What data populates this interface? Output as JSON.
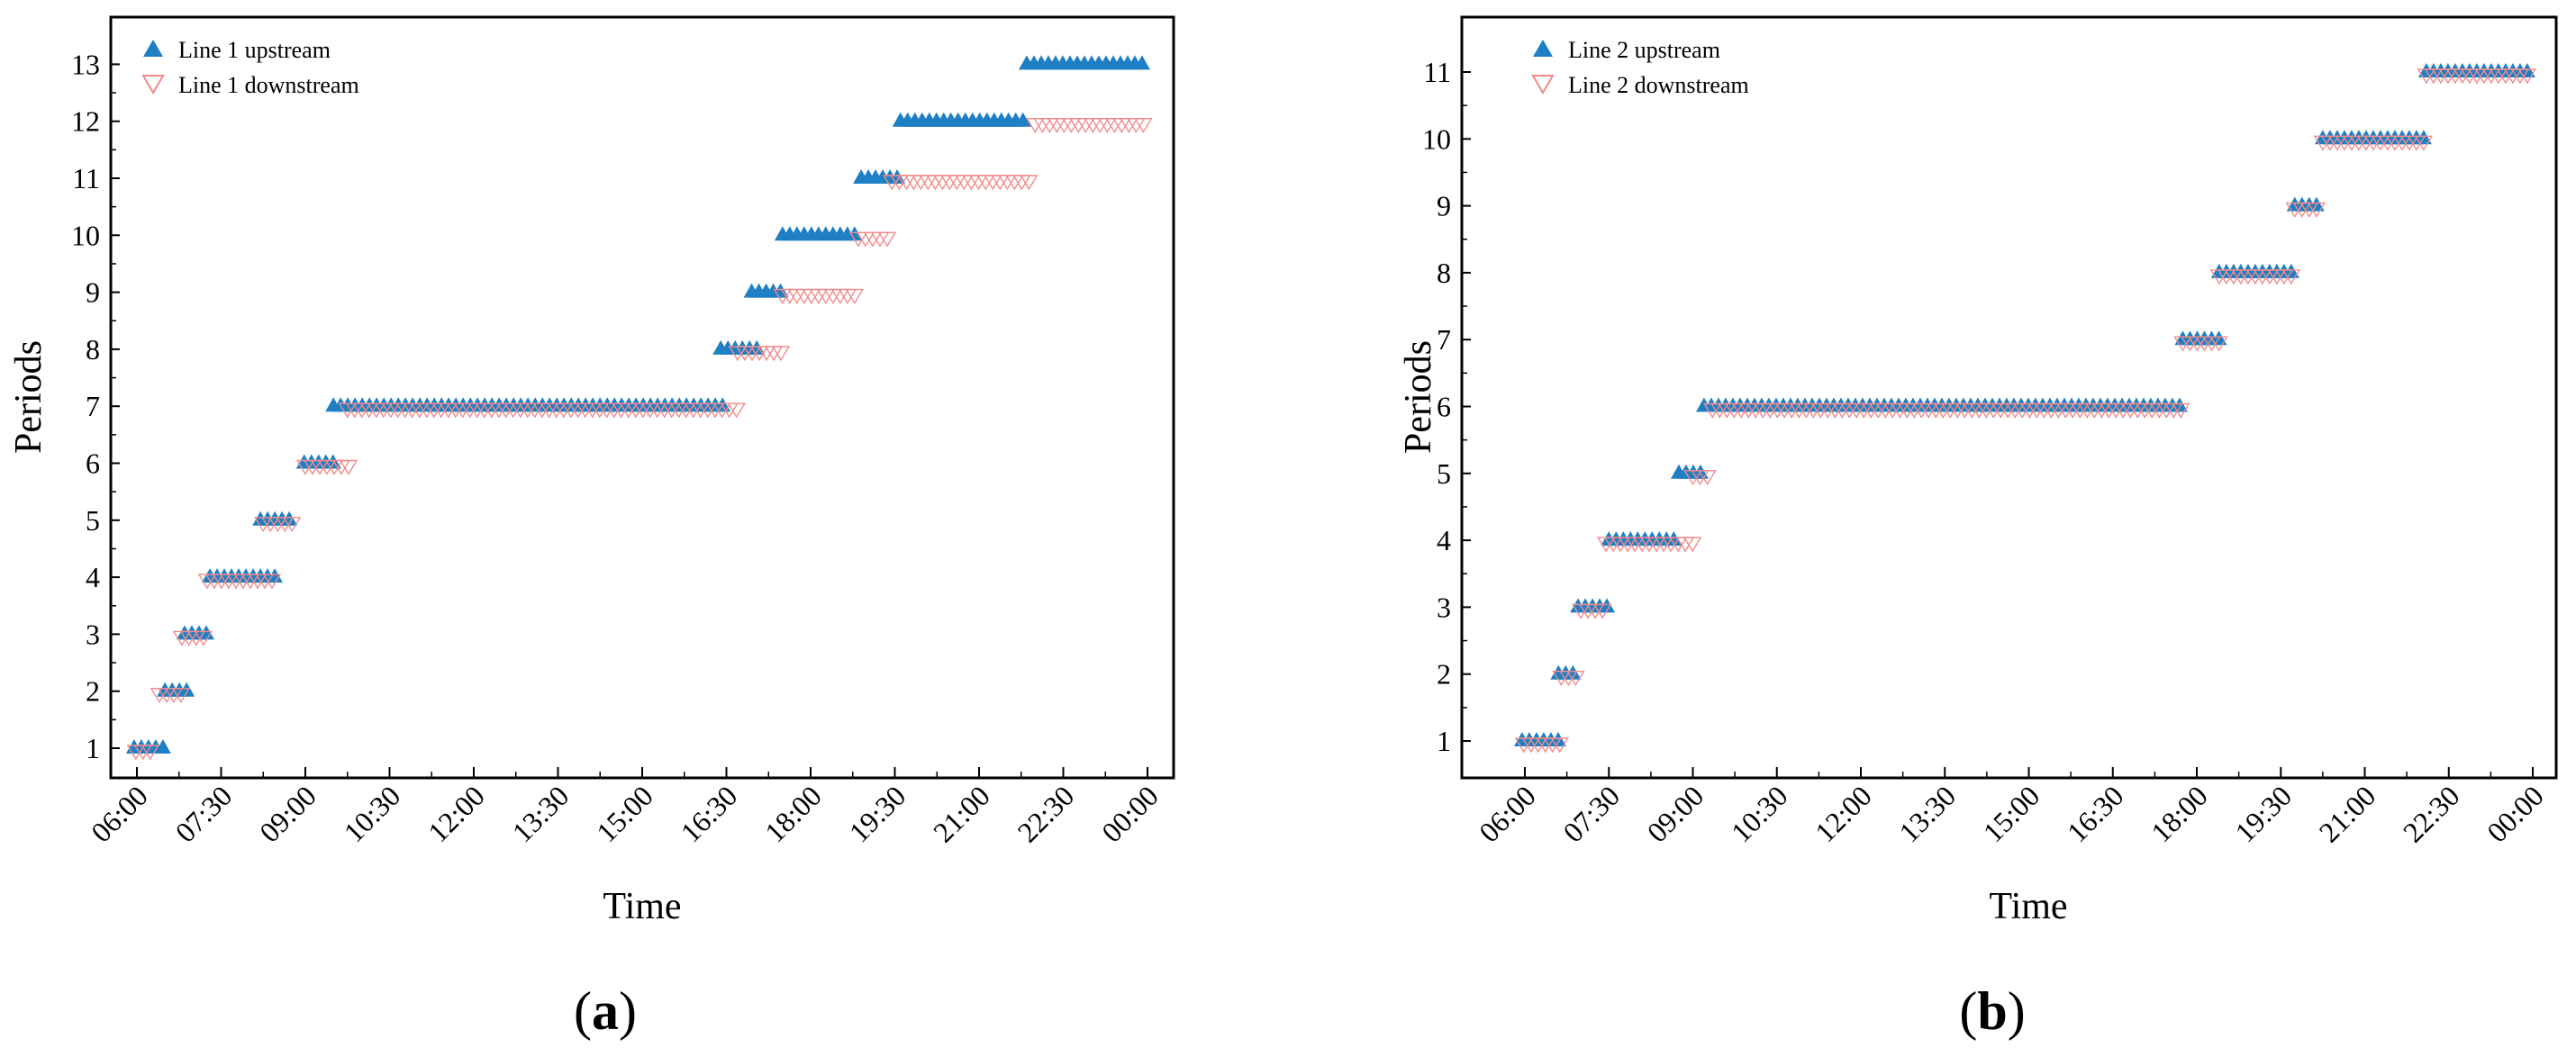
{
  "chart_data": [
    {
      "type": "scatter",
      "panel_label": "a",
      "xlabel": "Time",
      "ylabel": "Periods",
      "x_ticks": [
        "06:00",
        "07:30",
        "09:00",
        "10:30",
        "12:00",
        "13:30",
        "15:00",
        "16:30",
        "18:00",
        "19:30",
        "21:00",
        "22:30",
        "00:00"
      ],
      "xlim_hours": [
        6,
        24
      ],
      "ylim": [
        0.5,
        13.75
      ],
      "y_ticks": [
        1,
        2,
        3,
        4,
        5,
        6,
        7,
        8,
        9,
        10,
        11,
        12,
        13
      ],
      "legend_position": "top-left",
      "series": [
        {
          "name": "Line 1 upstream",
          "marker": "triangle-up",
          "color": "#1f7fc4",
          "segments": [
            {
              "period": 1,
              "start": 5.95,
              "end": 6.5
            },
            {
              "period": 2,
              "start": 6.5,
              "end": 6.95
            },
            {
              "period": 3,
              "start": 6.85,
              "end": 7.35
            },
            {
              "period": 4,
              "start": 7.3,
              "end": 8.55
            },
            {
              "period": 5,
              "start": 8.2,
              "end": 8.8
            },
            {
              "period": 6,
              "start": 8.98,
              "end": 9.5
            },
            {
              "period": 7,
              "start": 9.5,
              "end": 16.45
            },
            {
              "period": 8,
              "start": 16.4,
              "end": 17.1
            },
            {
              "period": 9,
              "start": 16.95,
              "end": 17.5
            },
            {
              "period": 10,
              "start": 17.5,
              "end": 18.9
            },
            {
              "period": 11,
              "start": 18.9,
              "end": 19.6
            },
            {
              "period": 12,
              "start": 19.6,
              "end": 21.85
            },
            {
              "period": 13,
              "start": 21.85,
              "end": 24.0
            }
          ]
        },
        {
          "name": "Line 1 downstream",
          "marker": "triangle-down",
          "color": "#f28b8b",
          "segments": [
            {
              "period": 1,
              "start": 5.98,
              "end": 6.35
            },
            {
              "period": 2,
              "start": 6.4,
              "end": 6.85
            },
            {
              "period": 3,
              "start": 6.8,
              "end": 7.25
            },
            {
              "period": 4,
              "start": 7.25,
              "end": 8.45
            },
            {
              "period": 5,
              "start": 8.25,
              "end": 8.85
            },
            {
              "period": 6,
              "start": 9.0,
              "end": 9.85
            },
            {
              "period": 7,
              "start": 9.75,
              "end": 16.8
            },
            {
              "period": 8,
              "start": 16.7,
              "end": 17.55
            },
            {
              "period": 9,
              "start": 17.5,
              "end": 18.85
            },
            {
              "period": 10,
              "start": 18.85,
              "end": 19.45
            },
            {
              "period": 11,
              "start": 19.45,
              "end": 22.0
            },
            {
              "period": 12,
              "start": 22.0,
              "end": 24.0
            }
          ]
        }
      ]
    },
    {
      "type": "scatter",
      "panel_label": "b",
      "xlabel": "Time",
      "ylabel": "Periods",
      "x_ticks": [
        "06:00",
        "07:30",
        "09:00",
        "10:30",
        "12:00",
        "13:30",
        "15:00",
        "16:30",
        "18:00",
        "19:30",
        "21:00",
        "22:30",
        "00:00"
      ],
      "xlim_hours": [
        6,
        24
      ],
      "ylim": [
        0.5,
        11.9
      ],
      "y_ticks": [
        1,
        2,
        3,
        4,
        5,
        6,
        7,
        8,
        9,
        10,
        11
      ],
      "legend_position": "top-left",
      "series": [
        {
          "name": "Line 2 upstream",
          "marker": "triangle-up",
          "color": "#1f7fc4",
          "segments": [
            {
              "period": 1,
              "start": 5.95,
              "end": 6.6
            },
            {
              "period": 2,
              "start": 6.6,
              "end": 6.95
            },
            {
              "period": 3,
              "start": 6.95,
              "end": 7.5
            },
            {
              "period": 4,
              "start": 7.5,
              "end": 8.75
            },
            {
              "period": 5,
              "start": 8.75,
              "end": 9.2
            },
            {
              "period": 6,
              "start": 9.2,
              "end": 17.75
            },
            {
              "period": 7,
              "start": 17.75,
              "end": 18.4
            },
            {
              "period": 8,
              "start": 18.4,
              "end": 19.75
            },
            {
              "period": 9,
              "start": 19.75,
              "end": 20.25
            },
            {
              "period": 10,
              "start": 20.25,
              "end": 22.1
            },
            {
              "period": 11,
              "start": 22.1,
              "end": 24.0
            }
          ]
        },
        {
          "name": "Line 2 downstream",
          "marker": "triangle-down",
          "color": "#f28b8b",
          "segments": [
            {
              "period": 1,
              "start": 5.98,
              "end": 6.65
            },
            {
              "period": 2,
              "start": 6.65,
              "end": 7.0
            },
            {
              "period": 3,
              "start": 7.0,
              "end": 7.45
            },
            {
              "period": 4,
              "start": 7.45,
              "end": 9.0
            },
            {
              "period": 5,
              "start": 9.0,
              "end": 9.35
            },
            {
              "period": 6,
              "start": 9.35,
              "end": 17.75
            },
            {
              "period": 7,
              "start": 17.75,
              "end": 18.4
            },
            {
              "period": 8,
              "start": 18.4,
              "end": 19.75
            },
            {
              "period": 9,
              "start": 19.75,
              "end": 20.25
            },
            {
              "period": 10,
              "start": 20.25,
              "end": 22.1
            },
            {
              "period": 11,
              "start": 22.1,
              "end": 24.0
            }
          ]
        }
      ]
    }
  ]
}
